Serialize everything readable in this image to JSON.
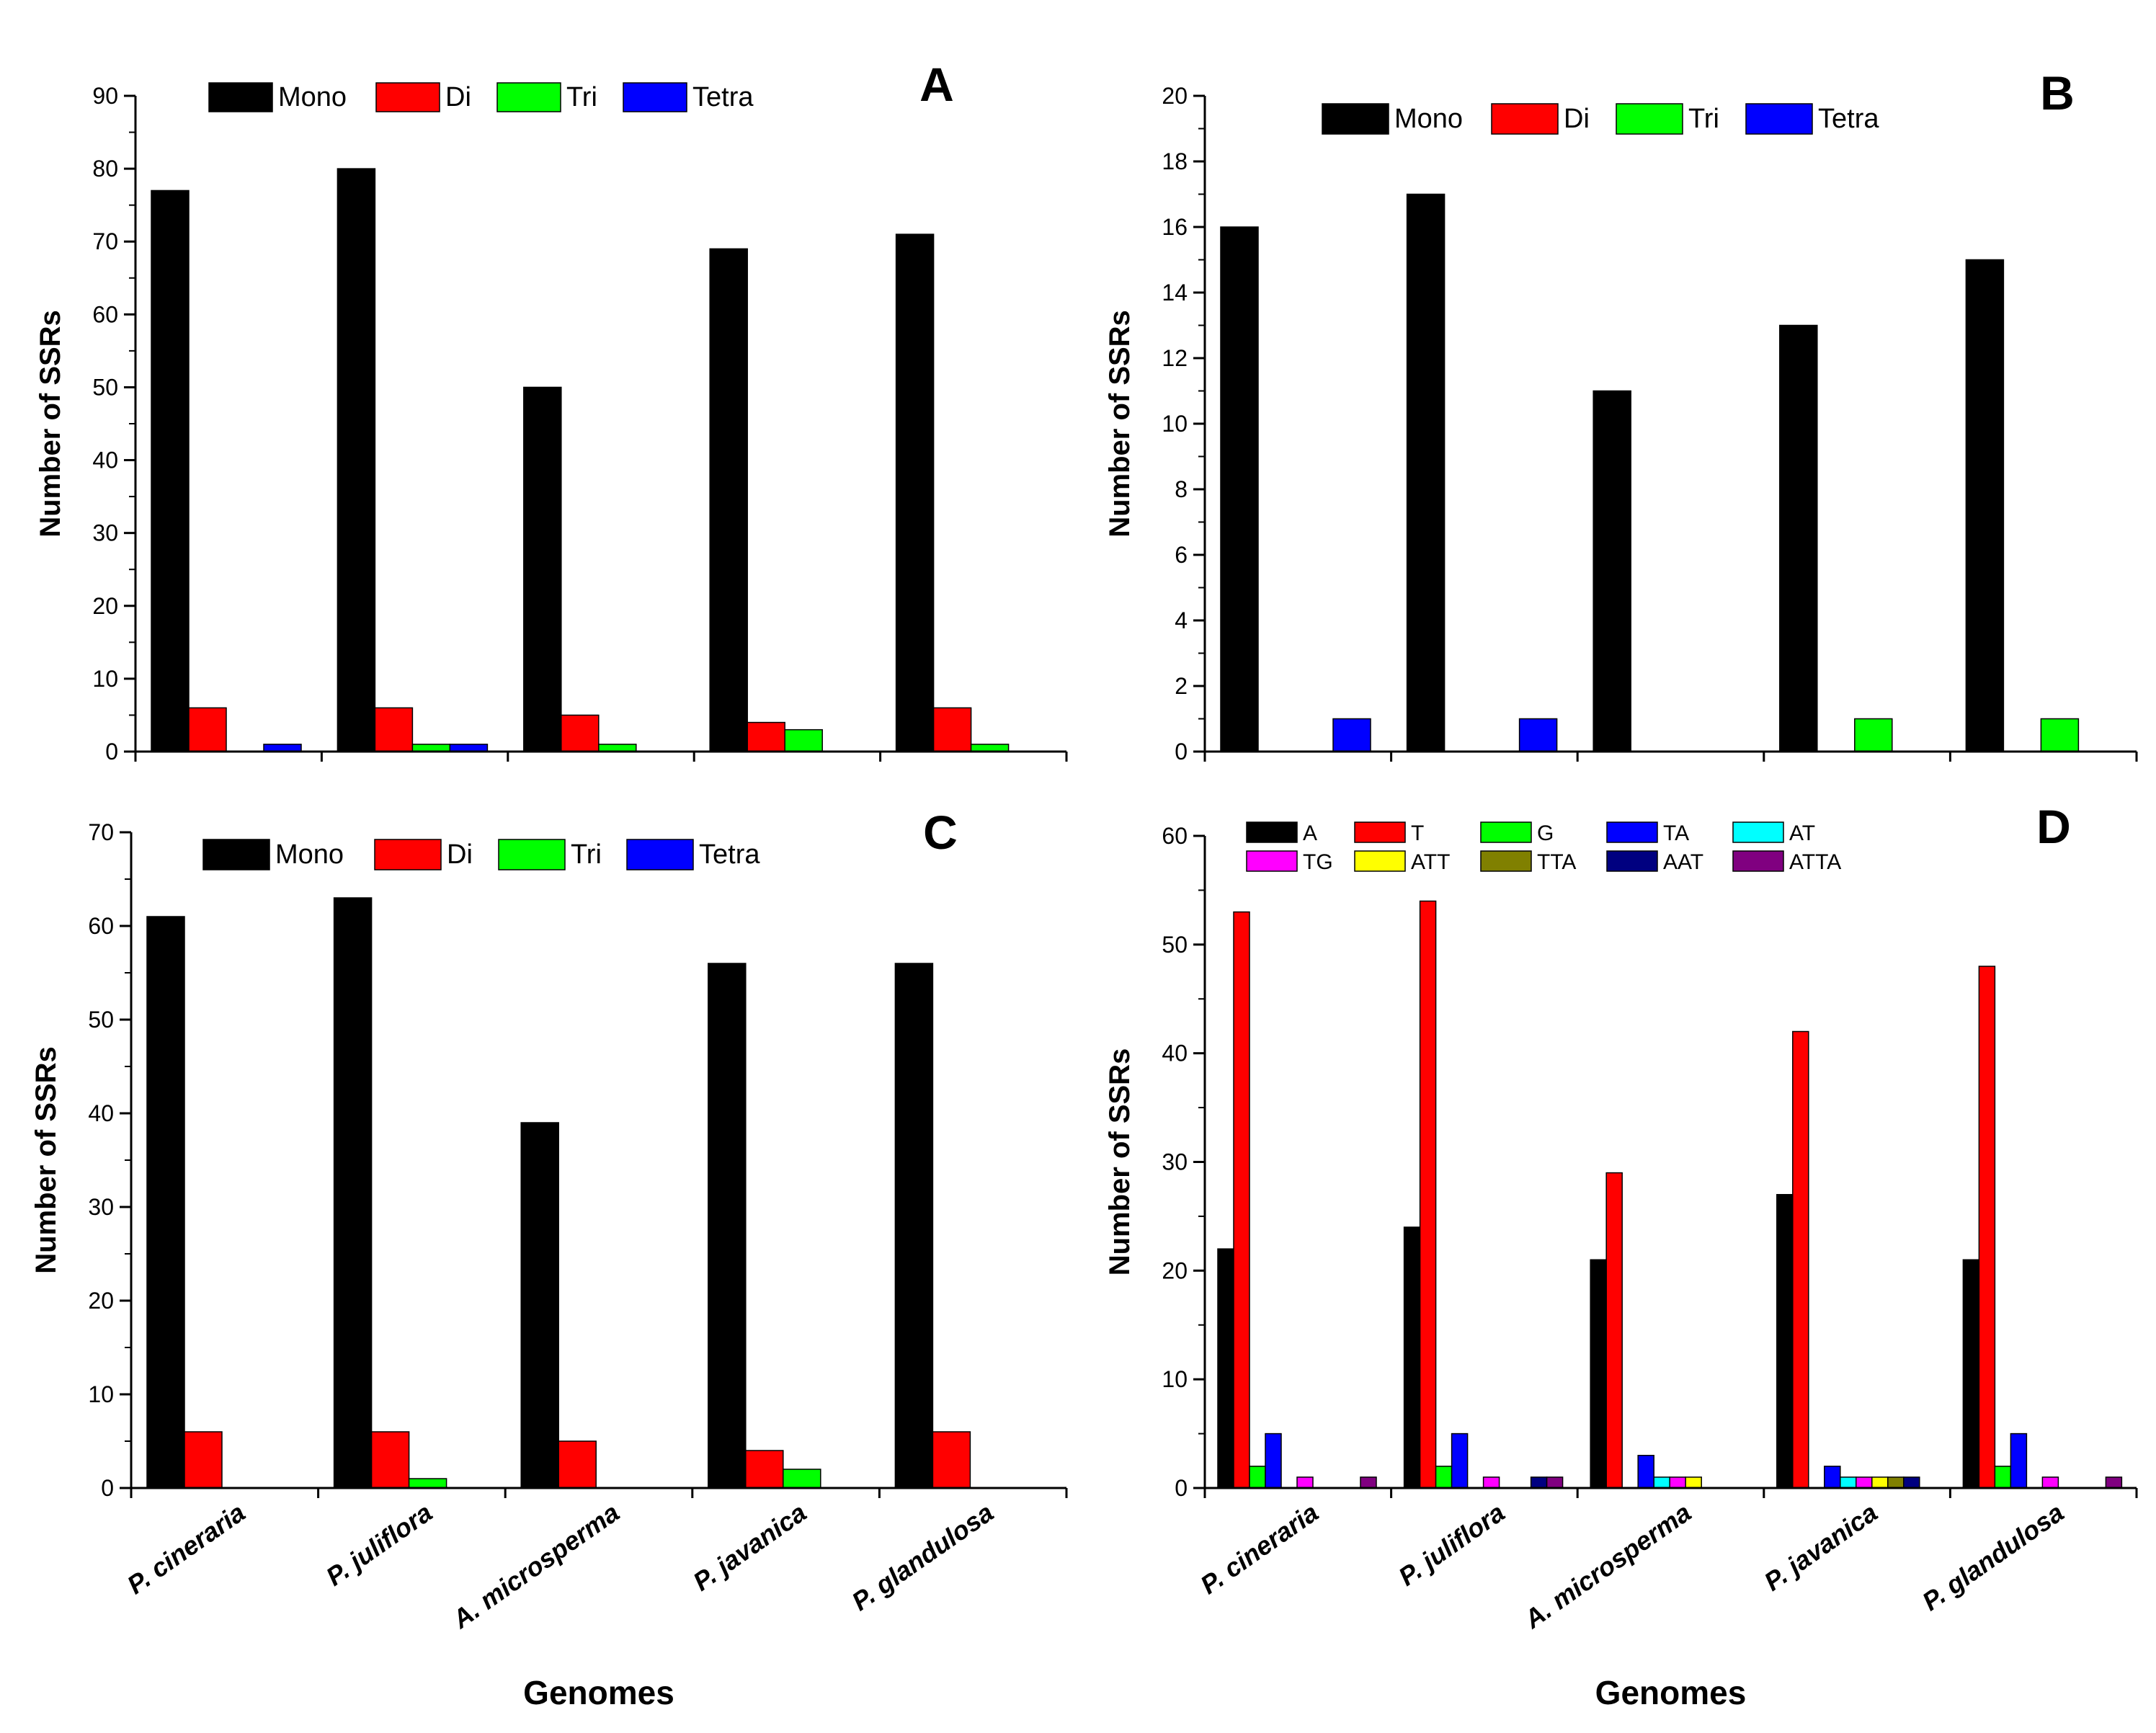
{
  "figure": {
    "xlabel": "Genomes"
  },
  "colors": {
    "Mono": "#000000",
    "Di": "#ff0000",
    "Tri": "#00ff00",
    "Tetra": "#0000ff",
    "A": "#000000",
    "T": "#ff0000",
    "G": "#00ff00",
    "TA": "#0000ff",
    "AT": "#00ffff",
    "TG": "#ff00ff",
    "ATT": "#ffff00",
    "TTA": "#808000",
    "AAT": "#000080",
    "ATTA": "#800080"
  },
  "chart_data": [
    {
      "panel": "A",
      "type": "bar",
      "ylabel": "Number of SSRs",
      "ylim": [
        0,
        90
      ],
      "yticks": [
        0,
        10,
        20,
        30,
        40,
        50,
        60,
        70,
        80,
        90
      ],
      "categories": [
        "P. cineraria",
        "P. juliflora",
        "A. microsperma",
        "P. javanica",
        "P. glandulosa"
      ],
      "show_category_labels": false,
      "legend_position": "top",
      "series": [
        {
          "name": "Mono",
          "values": [
            77,
            80,
            50,
            69,
            71
          ]
        },
        {
          "name": "Di",
          "values": [
            6,
            6,
            5,
            4,
            6
          ]
        },
        {
          "name": "Tri",
          "values": [
            0,
            1,
            1,
            3,
            1
          ]
        },
        {
          "name": "Tetra",
          "values": [
            1,
            1,
            0,
            0,
            0
          ]
        }
      ]
    },
    {
      "panel": "B",
      "type": "bar",
      "ylabel": "Number of SSRs",
      "ylim": [
        0,
        20
      ],
      "yticks": [
        0,
        2,
        4,
        6,
        8,
        10,
        12,
        14,
        16,
        18,
        20
      ],
      "categories": [
        "P. cineraria",
        "P. juliflora",
        "A. microsperma",
        "P. javanica",
        "P. glandulosa"
      ],
      "show_category_labels": false,
      "legend_position": "top",
      "series": [
        {
          "name": "Mono",
          "values": [
            16,
            17,
            11,
            13,
            15
          ]
        },
        {
          "name": "Di",
          "values": [
            0,
            0,
            0,
            0,
            0
          ]
        },
        {
          "name": "Tri",
          "values": [
            0,
            0,
            0,
            1,
            1
          ]
        },
        {
          "name": "Tetra",
          "values": [
            1,
            1,
            0,
            0,
            0
          ]
        }
      ]
    },
    {
      "panel": "C",
      "type": "bar",
      "ylabel": "Number of SSRs",
      "xlabel": "Genomes",
      "ylim": [
        0,
        70
      ],
      "yticks": [
        0,
        10,
        20,
        30,
        40,
        50,
        60,
        70
      ],
      "categories": [
        "P. cineraria",
        "P. juliflora",
        "A. microsperma",
        "P. javanica",
        "P. glandulosa"
      ],
      "show_category_labels": true,
      "legend_position": "top",
      "series": [
        {
          "name": "Mono",
          "values": [
            61,
            63,
            39,
            56,
            56
          ]
        },
        {
          "name": "Di",
          "values": [
            6,
            6,
            5,
            4,
            6
          ]
        },
        {
          "name": "Tri",
          "values": [
            0,
            1,
            0,
            2,
            0
          ]
        },
        {
          "name": "Tetra",
          "values": [
            0,
            0,
            0,
            0,
            0
          ]
        }
      ]
    },
    {
      "panel": "D",
      "type": "bar",
      "ylabel": "Number of SSRs",
      "xlabel": "Genomes",
      "ylim": [
        0,
        60
      ],
      "yticks": [
        0,
        10,
        20,
        30,
        40,
        50,
        60
      ],
      "categories": [
        "P. cineraria",
        "P. juliflora",
        "A. microsperma",
        "P. javanica",
        "P. glandulosa"
      ],
      "show_category_labels": true,
      "legend_position": "top",
      "series": [
        {
          "name": "A",
          "values": [
            22,
            24,
            21,
            27,
            21
          ]
        },
        {
          "name": "T",
          "values": [
            53,
            54,
            29,
            42,
            48
          ]
        },
        {
          "name": "G",
          "values": [
            2,
            2,
            0,
            0,
            2
          ]
        },
        {
          "name": "TA",
          "values": [
            5,
            5,
            3,
            2,
            5
          ]
        },
        {
          "name": "AT",
          "values": [
            0,
            0,
            1,
            1,
            0
          ]
        },
        {
          "name": "TG",
          "values": [
            1,
            1,
            1,
            1,
            1
          ]
        },
        {
          "name": "ATT",
          "values": [
            0,
            0,
            1,
            1,
            0
          ]
        },
        {
          "name": "TTA",
          "values": [
            0,
            0,
            0,
            1,
            0
          ]
        },
        {
          "name": "AAT",
          "values": [
            0,
            1,
            0,
            1,
            0
          ]
        },
        {
          "name": "ATTA",
          "values": [
            1,
            1,
            0,
            0,
            1
          ]
        }
      ]
    }
  ]
}
